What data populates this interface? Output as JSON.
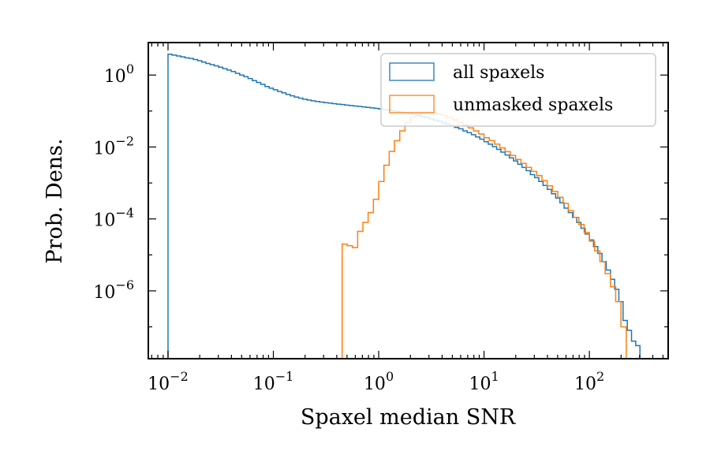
{
  "chart_data": {
    "type": "histogram",
    "xlabel": "Spaxel median SNR",
    "ylabel": "Prob. Dens.",
    "xscale": "log",
    "yscale": "log",
    "xlim": [
      0.0065,
      560
    ],
    "ylim": [
      1.3e-08,
      8
    ],
    "x_ticks": [
      {
        "value": 0.01,
        "base": "10",
        "exp": "−2"
      },
      {
        "value": 0.1,
        "base": "10",
        "exp": "−1"
      },
      {
        "value": 1,
        "base": "10",
        "exp": "0"
      },
      {
        "value": 10,
        "base": "10",
        "exp": "1"
      },
      {
        "value": 100,
        "base": "10",
        "exp": "2"
      }
    ],
    "y_ticks": [
      {
        "value": 1,
        "base": "10",
        "exp": "0"
      },
      {
        "value": 0.01,
        "base": "10",
        "exp": "−2"
      },
      {
        "value": 0.0001,
        "base": "10",
        "exp": "−4"
      },
      {
        "value": 1e-06,
        "base": "10",
        "exp": "−6"
      }
    ],
    "legend": {
      "position": "upper-right"
    },
    "series": [
      {
        "name": "all spaxels",
        "color": "#1f77b4",
        "bins": [
          [
            0.01,
            3.8
          ],
          [
            0.0109,
            3.6
          ],
          [
            0.012,
            3.4
          ],
          [
            0.0132,
            3.2
          ],
          [
            0.0145,
            3.0
          ],
          [
            0.0158,
            2.9
          ],
          [
            0.0174,
            2.7
          ],
          [
            0.0191,
            2.5
          ],
          [
            0.0209,
            2.3
          ],
          [
            0.0229,
            2.1
          ],
          [
            0.0251,
            1.95
          ],
          [
            0.0275,
            1.8
          ],
          [
            0.0302,
            1.65
          ],
          [
            0.0331,
            1.5
          ],
          [
            0.0363,
            1.38
          ],
          [
            0.0398,
            1.25
          ],
          [
            0.0437,
            1.12
          ],
          [
            0.0479,
            1.0
          ],
          [
            0.0525,
            0.9
          ],
          [
            0.0575,
            0.8
          ],
          [
            0.0631,
            0.7
          ],
          [
            0.0692,
            0.62
          ],
          [
            0.0759,
            0.55
          ],
          [
            0.0832,
            0.48
          ],
          [
            0.0912,
            0.43
          ],
          [
            0.1,
            0.39
          ],
          [
            0.1096,
            0.35
          ],
          [
            0.1202,
            0.32
          ],
          [
            0.1318,
            0.29
          ],
          [
            0.1445,
            0.265
          ],
          [
            0.1585,
            0.245
          ],
          [
            0.1738,
            0.228
          ],
          [
            0.1905,
            0.213
          ],
          [
            0.2089,
            0.202
          ],
          [
            0.2291,
            0.192
          ],
          [
            0.2512,
            0.184
          ],
          [
            0.2754,
            0.177
          ],
          [
            0.302,
            0.171
          ],
          [
            0.3311,
            0.166
          ],
          [
            0.3631,
            0.16
          ],
          [
            0.3981,
            0.155
          ],
          [
            0.4365,
            0.151
          ],
          [
            0.4786,
            0.146
          ],
          [
            0.5248,
            0.142
          ],
          [
            0.5754,
            0.138
          ],
          [
            0.631,
            0.134
          ],
          [
            0.6918,
            0.13
          ],
          [
            0.7586,
            0.126
          ],
          [
            0.8318,
            0.122
          ],
          [
            0.912,
            0.118
          ],
          [
            1.0,
            0.114
          ],
          [
            1.096,
            0.11
          ],
          [
            1.202,
            0.106
          ],
          [
            1.318,
            0.102
          ],
          [
            1.445,
            0.097
          ],
          [
            1.585,
            0.093
          ],
          [
            1.738,
            0.089
          ],
          [
            1.905,
            0.084
          ],
          [
            2.089,
            0.08
          ],
          [
            2.291,
            0.075
          ],
          [
            2.512,
            0.07
          ],
          [
            2.754,
            0.066
          ],
          [
            3.02,
            0.061
          ],
          [
            3.311,
            0.056
          ],
          [
            3.631,
            0.052
          ],
          [
            3.981,
            0.047
          ],
          [
            4.365,
            0.043
          ],
          [
            4.786,
            0.039
          ],
          [
            5.248,
            0.035
          ],
          [
            5.754,
            0.032
          ],
          [
            6.31,
            0.028
          ],
          [
            6.918,
            0.025
          ],
          [
            7.586,
            0.022
          ],
          [
            8.318,
            0.019
          ],
          [
            9.12,
            0.0165
          ],
          [
            10.0,
            0.014
          ],
          [
            10.96,
            0.012
          ],
          [
            12.02,
            0.0102
          ],
          [
            13.18,
            0.0086
          ],
          [
            14.45,
            0.0072
          ],
          [
            15.85,
            0.006
          ],
          [
            17.38,
            0.005
          ],
          [
            19.05,
            0.0041
          ],
          [
            20.89,
            0.0033
          ],
          [
            22.91,
            0.0027
          ],
          [
            25.12,
            0.0022
          ],
          [
            27.54,
            0.0017
          ],
          [
            30.2,
            0.0014
          ],
          [
            33.11,
            0.0011
          ],
          [
            36.31,
            0.00085
          ],
          [
            39.81,
            0.00066
          ],
          [
            43.65,
            0.0005
          ],
          [
            47.86,
            0.00038
          ],
          [
            52.48,
            0.00028
          ],
          [
            57.54,
            0.0002
          ],
          [
            63.1,
            0.00015
          ],
          [
            69.18,
            0.00011
          ],
          [
            75.86,
            8e-05
          ],
          [
            83.18,
            5.5e-05
          ],
          [
            91.2,
            3.8e-05
          ],
          [
            100.0,
            2.6e-05
          ],
          [
            109.6,
            1.7e-05
          ],
          [
            120.2,
            1.1e-05
          ],
          [
            131.8,
            6.5e-06
          ],
          [
            144.5,
            3.8e-06
          ],
          [
            158.5,
            2.1e-06
          ],
          [
            173.8,
            1.1e-06
          ],
          [
            190.5,
            5e-07
          ],
          [
            208.9,
            1.5e-07
          ],
          [
            229.1,
            8e-08
          ],
          [
            251.2,
            4e-08
          ],
          [
            275.4,
            3e-08
          ]
        ],
        "x_end": 302
      },
      {
        "name": "unmasked spaxels",
        "color": "#ff7f0e",
        "bins": [
          [
            0.45,
            2e-05
          ],
          [
            0.501,
            1.8e-05
          ],
          [
            0.562,
            1.6e-05
          ],
          [
            0.631,
            4.5e-05
          ],
          [
            0.708,
            8e-05
          ],
          [
            0.794,
            0.00015
          ],
          [
            0.891,
            0.00035
          ],
          [
            1.0,
            0.0011
          ],
          [
            1.122,
            0.0031
          ],
          [
            1.259,
            0.0075
          ],
          [
            1.413,
            0.015
          ],
          [
            1.585,
            0.028
          ],
          [
            1.778,
            0.047
          ],
          [
            1.995,
            0.066
          ],
          [
            2.239,
            0.081
          ],
          [
            2.512,
            0.09
          ],
          [
            2.818,
            0.092
          ],
          [
            3.162,
            0.089
          ],
          [
            3.548,
            0.083
          ],
          [
            3.981,
            0.075
          ],
          [
            4.467,
            0.066
          ],
          [
            5.012,
            0.057
          ],
          [
            5.623,
            0.049
          ],
          [
            6.31,
            0.041
          ],
          [
            7.079,
            0.034
          ],
          [
            7.943,
            0.028
          ],
          [
            8.913,
            0.023
          ],
          [
            10.0,
            0.018
          ],
          [
            11.22,
            0.015
          ],
          [
            12.59,
            0.012
          ],
          [
            14.13,
            0.0094
          ],
          [
            15.85,
            0.0074
          ],
          [
            17.78,
            0.0058
          ],
          [
            19.95,
            0.0045
          ],
          [
            22.39,
            0.0035
          ],
          [
            25.12,
            0.0027
          ],
          [
            28.18,
            0.0021
          ],
          [
            31.62,
            0.0016
          ],
          [
            35.48,
            0.00115
          ],
          [
            39.81,
            0.00083
          ],
          [
            44.67,
            0.00058
          ],
          [
            50.12,
            0.0004
          ],
          [
            56.23,
            0.00027
          ],
          [
            63.1,
            0.00017
          ],
          [
            70.79,
            0.00011
          ],
          [
            79.43,
            7e-05
          ],
          [
            89.13,
            4.2e-05
          ],
          [
            100.0,
            2.4e-05
          ],
          [
            112.2,
            1.3e-05
          ],
          [
            125.9,
            6.5e-06
          ],
          [
            141.3,
            3e-06
          ],
          [
            158.5,
            1.3e-06
          ],
          [
            177.8,
            5e-07
          ],
          [
            199.5,
            1e-07
          ]
        ],
        "x_end": 224
      }
    ]
  }
}
